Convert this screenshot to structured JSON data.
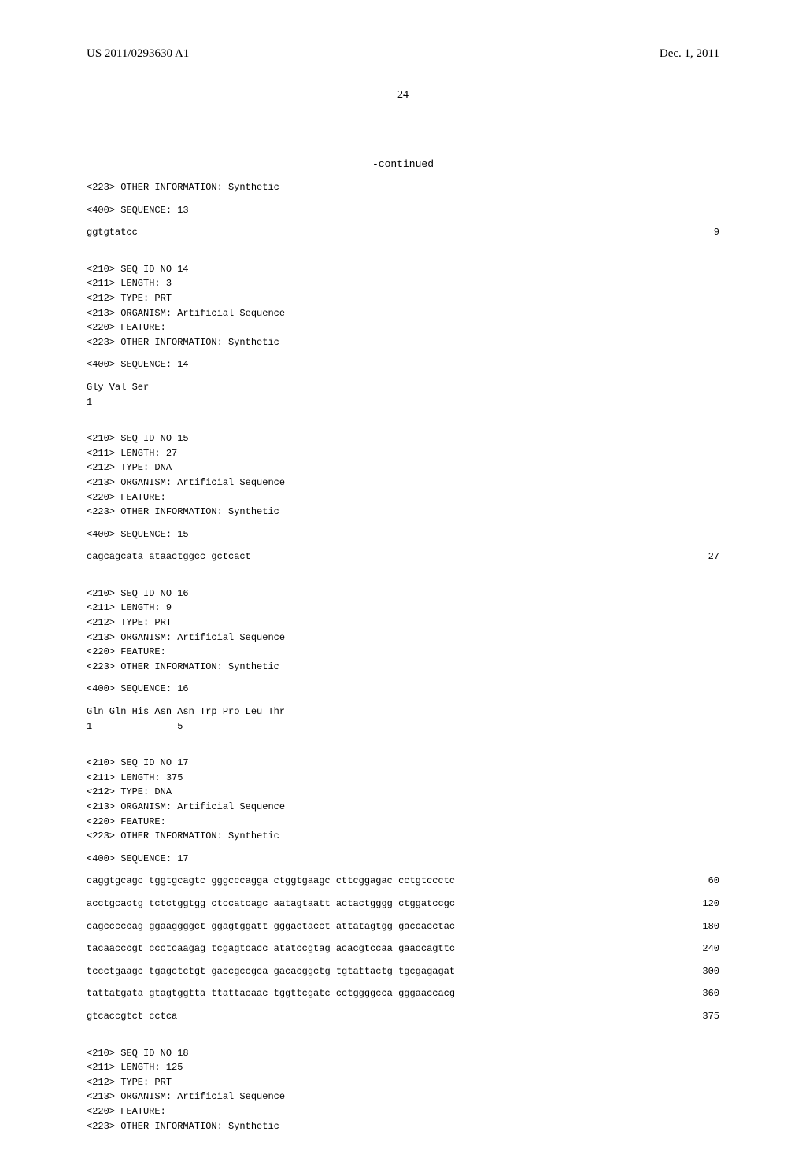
{
  "header": {
    "pub_no": "US 2011/0293630 A1",
    "pub_date": "Dec. 1, 2011",
    "page_num": "24",
    "continued": "-continued"
  },
  "entries": [
    {
      "meta": [
        "<223> OTHER INFORMATION: Synthetic"
      ],
      "seq_header": "<400> SEQUENCE: 13",
      "seq_rows": [
        {
          "text": "ggtgtatcc",
          "num": "9"
        }
      ]
    },
    {
      "meta": [
        "<210> SEQ ID NO 14",
        "<211> LENGTH: 3",
        "<212> TYPE: PRT",
        "<213> ORGANISM: Artificial Sequence",
        "<220> FEATURE:",
        "<223> OTHER INFORMATION: Synthetic"
      ],
      "seq_header": "<400> SEQUENCE: 14",
      "seq_rows": [
        {
          "text": "Gly Val Ser",
          "num": ""
        },
        {
          "text": "1",
          "num": ""
        }
      ]
    },
    {
      "meta": [
        "<210> SEQ ID NO 15",
        "<211> LENGTH: 27",
        "<212> TYPE: DNA",
        "<213> ORGANISM: Artificial Sequence",
        "<220> FEATURE:",
        "<223> OTHER INFORMATION: Synthetic"
      ],
      "seq_header": "<400> SEQUENCE: 15",
      "seq_rows": [
        {
          "text": "cagcagcata ataactggcc gctcact",
          "num": "27"
        }
      ]
    },
    {
      "meta": [
        "<210> SEQ ID NO 16",
        "<211> LENGTH: 9",
        "<212> TYPE: PRT",
        "<213> ORGANISM: Artificial Sequence",
        "<220> FEATURE:",
        "<223> OTHER INFORMATION: Synthetic"
      ],
      "seq_header": "<400> SEQUENCE: 16",
      "seq_rows": [
        {
          "text": "Gln Gln His Asn Asn Trp Pro Leu Thr",
          "num": ""
        },
        {
          "text": "1               5",
          "num": ""
        }
      ]
    },
    {
      "meta": [
        "<210> SEQ ID NO 17",
        "<211> LENGTH: 375",
        "<212> TYPE: DNA",
        "<213> ORGANISM: Artificial Sequence",
        "<220> FEATURE:",
        "<223> OTHER INFORMATION: Synthetic"
      ],
      "seq_header": "<400> SEQUENCE: 17",
      "seq_rows": [
        {
          "text": "caggtgcagc tggtgcagtc gggcccagga ctggtgaagc cttcggagac cctgtccctc",
          "num": "60"
        },
        {
          "text": "acctgcactg tctctggtgg ctccatcagc aatagtaatt actactgggg ctggatccgc",
          "num": "120"
        },
        {
          "text": "cagcccccag ggaaggggct ggagtggatt gggactacct attatagtgg gaccacctac",
          "num": "180"
        },
        {
          "text": "tacaacccgt ccctcaagag tcgagtcacc atatccgtag acacgtccaa gaaccagttc",
          "num": "240"
        },
        {
          "text": "tccctgaagc tgagctctgt gaccgccgca gacacggctg tgtattactg tgcgagagat",
          "num": "300"
        },
        {
          "text": "tattatgata gtagtggtta ttattacaac tggttcgatc cctggggcca gggaaccacg",
          "num": "360"
        },
        {
          "text": "gtcaccgtct cctca",
          "num": "375"
        }
      ]
    },
    {
      "meta": [
        "<210> SEQ ID NO 18",
        "<211> LENGTH: 125",
        "<212> TYPE: PRT",
        "<213> ORGANISM: Artificial Sequence",
        "<220> FEATURE:",
        "<223> OTHER INFORMATION: Synthetic"
      ],
      "seq_header": "",
      "seq_rows": []
    }
  ]
}
